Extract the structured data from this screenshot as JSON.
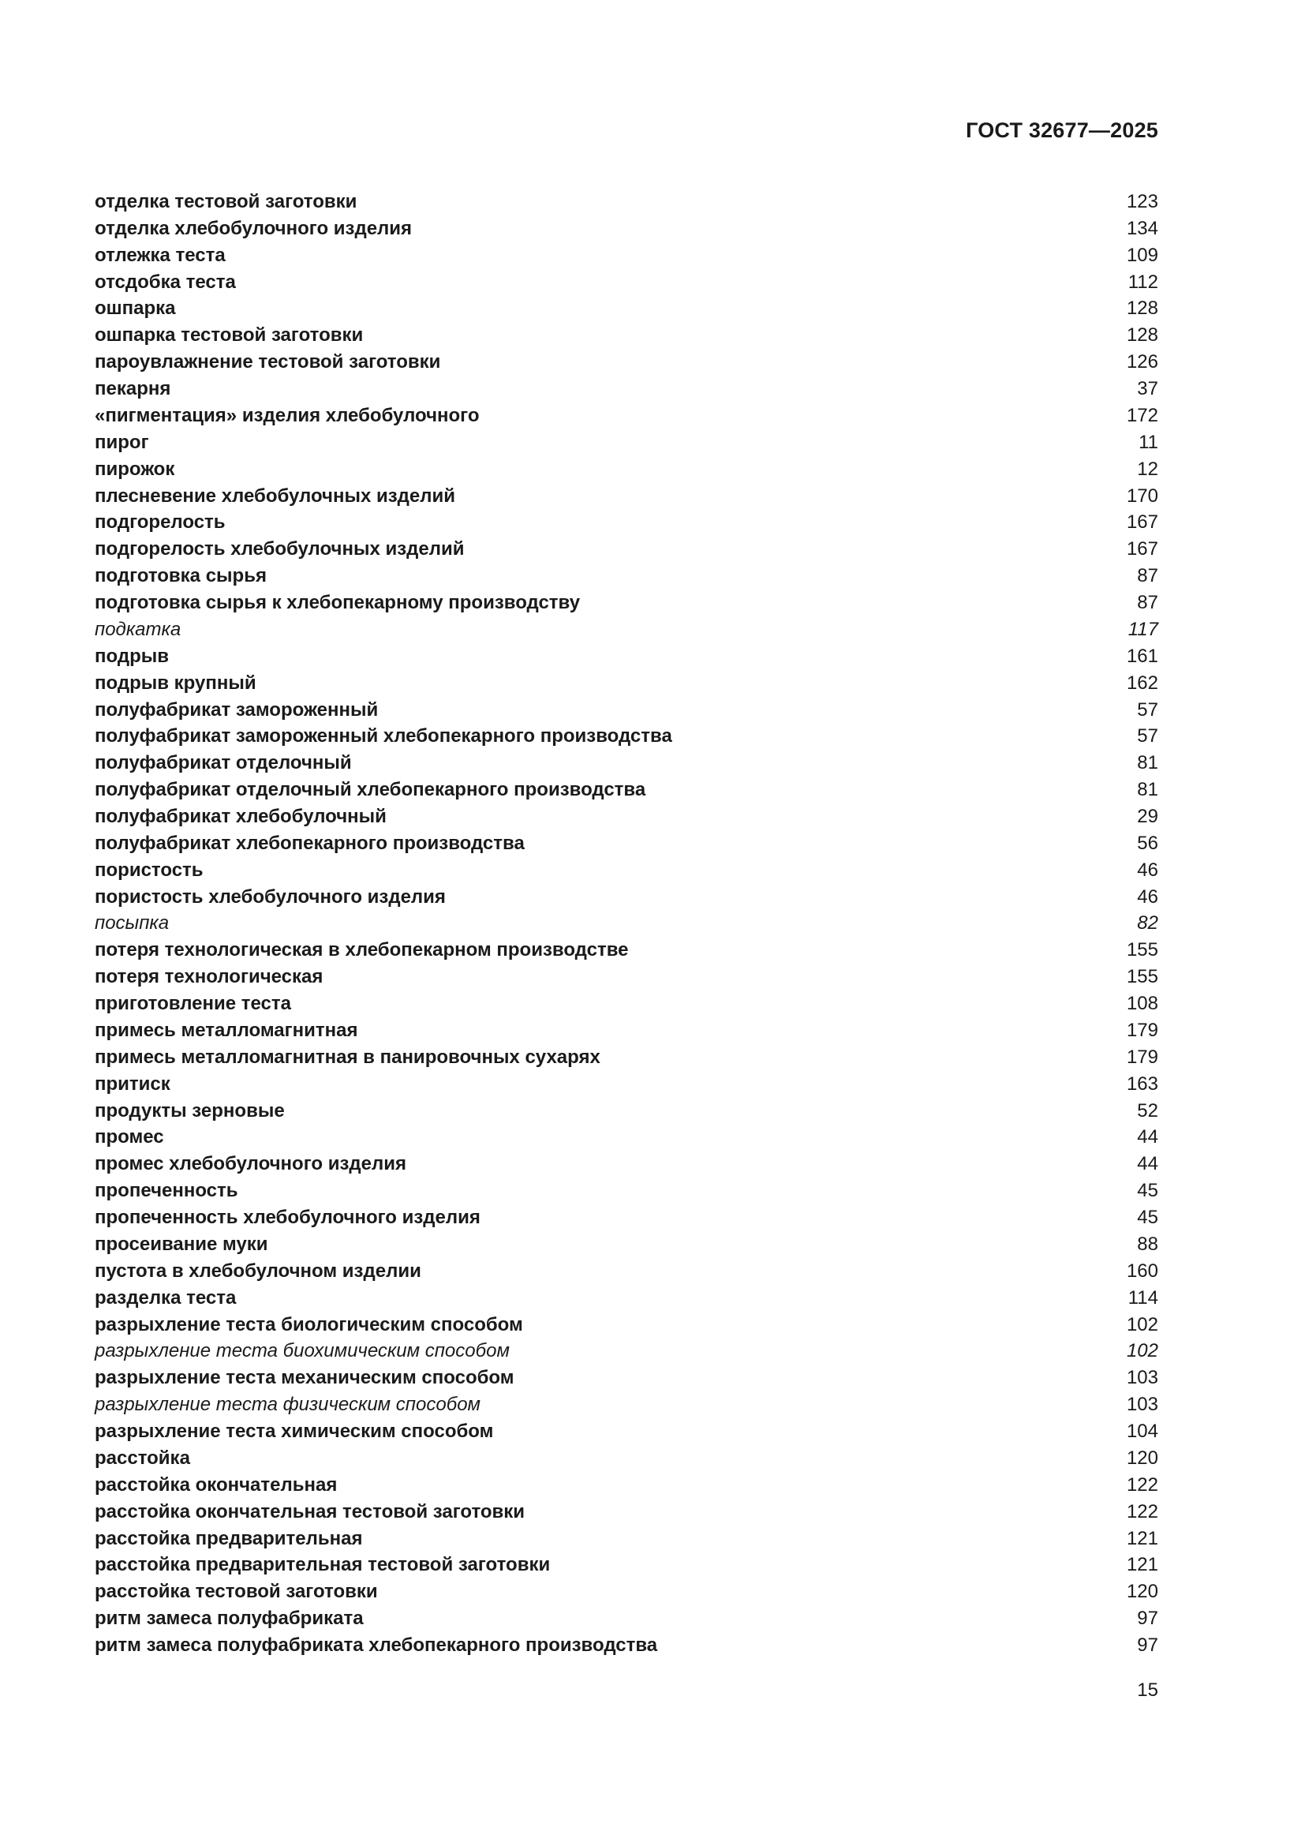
{
  "header": {
    "document_code": "ГОСТ 32677—2025"
  },
  "index": {
    "entries": [
      {
        "term": "отделка тестовой заготовки",
        "number": "123"
      },
      {
        "term": "отделка хлебобулочного изделия",
        "number": "134"
      },
      {
        "term": "отлежка теста",
        "number": "109"
      },
      {
        "term": "отсдобка теста",
        "number": "112"
      },
      {
        "term": "ошпарка",
        "number": "128"
      },
      {
        "term": "ошпарка тестовой заготовки",
        "number": "128"
      },
      {
        "term": "пароувлажнение тестовой заготовки",
        "number": "126"
      },
      {
        "term": "пекарня",
        "number": "37"
      },
      {
        "term": "«пигментация» изделия хлебобулочного",
        "number": "172"
      },
      {
        "term": "пирог",
        "number": "11"
      },
      {
        "term": "пирожок",
        "number": "12"
      },
      {
        "term": "плесневение хлебобулочных изделий",
        "number": "170"
      },
      {
        "term": "подгорелость",
        "number": "167"
      },
      {
        "term": "подгорелость хлебобулочных изделий",
        "number": "167"
      },
      {
        "term": "подготовка сырья",
        "number": "87"
      },
      {
        "term": "подготовка сырья к хлебопекарному производству",
        "number": "87"
      },
      {
        "term": "подкатка",
        "number": "117",
        "term_italic": true,
        "number_italic": true
      },
      {
        "term": "подрыв",
        "number": "161"
      },
      {
        "term": "подрыв крупный",
        "number": "162"
      },
      {
        "term": "полуфабрикат замороженный",
        "number": "57"
      },
      {
        "term": "полуфабрикат замороженный хлебопекарного производства",
        "number": "57"
      },
      {
        "term": "полуфабрикат отделочный",
        "number": "81"
      },
      {
        "term": "полуфабрикат отделочный хлебопекарного производства",
        "number": "81"
      },
      {
        "term": "полуфабрикат хлебобулочный",
        "number": "29"
      },
      {
        "term": "полуфабрикат хлебопекарного производства",
        "number": "56"
      },
      {
        "term": "пористость",
        "number": "46"
      },
      {
        "term": "пористость хлебобулочного изделия",
        "number": "46"
      },
      {
        "term": "посыпка",
        "number": "82",
        "term_italic": true,
        "number_italic": true
      },
      {
        "term": "потеря технологическая в хлебопекарном производстве",
        "number": "155"
      },
      {
        "term": "потеря технологическая",
        "number": "155"
      },
      {
        "term": "приготовление теста",
        "number": "108"
      },
      {
        "term": "примесь металломагнитная",
        "number": "179"
      },
      {
        "term": "примесь металломагнитная в панировочных сухарях",
        "number": "179"
      },
      {
        "term": "притиск",
        "number": "163"
      },
      {
        "term": "продукты зерновые",
        "number": "52"
      },
      {
        "term": "промес",
        "number": "44"
      },
      {
        "term": "промес хлебобулочного изделия",
        "number": "44"
      },
      {
        "term": "пропеченность",
        "number": "45"
      },
      {
        "term": "пропеченность хлебобулочного изделия",
        "number": "45"
      },
      {
        "term": "просеивание муки",
        "number": "88"
      },
      {
        "term": "пустота в хлебобулочном изделии",
        "number": "160"
      },
      {
        "term": "разделка теста",
        "number": "114"
      },
      {
        "term": "разрыхление теста биологическим способом",
        "number": "102"
      },
      {
        "term": "разрыхление теста биохимическим способом",
        "number": "102",
        "term_italic": true,
        "number_italic": true
      },
      {
        "term": "разрыхление теста механическим способом",
        "number": "103"
      },
      {
        "term": "разрыхление теста физическим способом",
        "number": "103",
        "term_italic": true
      },
      {
        "term": "разрыхление теста химическим способом",
        "number": "104"
      },
      {
        "term": "расстойка",
        "number": "120"
      },
      {
        "term": "расстойка окончательная",
        "number": "122"
      },
      {
        "term": "расстойка окончательная тестовой заготовки",
        "number": "122"
      },
      {
        "term": "расстойка предварительная",
        "number": "121"
      },
      {
        "term": "расстойка предварительная тестовой заготовки",
        "number": "121"
      },
      {
        "term": "расстойка тестовой заготовки",
        "number": "120"
      },
      {
        "term": "ритм замеса полуфабриката",
        "number": "97"
      },
      {
        "term": "ритм замеса полуфабриката хлебопекарного производства",
        "number": "97"
      }
    ]
  },
  "footer": {
    "page_number": "15"
  }
}
